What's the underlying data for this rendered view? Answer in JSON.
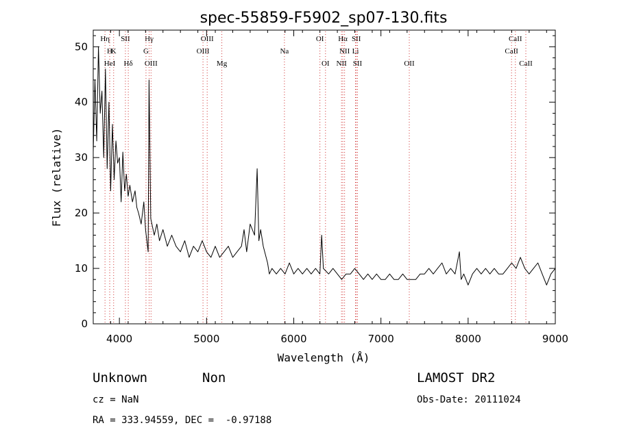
{
  "chart_data": {
    "type": "line",
    "title": "spec-55859-F5902_sp07-130.fits",
    "xlabel": "Wavelength (Å)",
    "ylabel": "Flux (relative)",
    "xlim": [
      3700,
      9000
    ],
    "ylim": [
      0,
      53
    ],
    "xticks": [
      4000,
      5000,
      6000,
      7000,
      8000,
      9000
    ],
    "yticks": [
      0,
      10,
      20,
      30,
      40,
      50
    ],
    "grid": false,
    "series": [
      {
        "color": "#000000",
        "x": [
          3700,
          3720,
          3740,
          3760,
          3780,
          3800,
          3820,
          3840,
          3860,
          3880,
          3900,
          3920,
          3940,
          3960,
          3980,
          4000,
          4020,
          4040,
          4060,
          4080,
          4100,
          4120,
          4150,
          4180,
          4200,
          4220,
          4250,
          4280,
          4300,
          4330,
          4340,
          4360,
          4400,
          4430,
          4460,
          4500,
          4550,
          4600,
          4650,
          4700,
          4750,
          4800,
          4850,
          4900,
          4950,
          5000,
          5050,
          5100,
          5150,
          5200,
          5250,
          5300,
          5350,
          5400,
          5430,
          5460,
          5500,
          5550,
          5580,
          5600,
          5620,
          5650,
          5700,
          5720,
          5750,
          5800,
          5850,
          5900,
          5950,
          6000,
          6050,
          6100,
          6150,
          6200,
          6250,
          6300,
          6320,
          6340,
          6400,
          6450,
          6500,
          6550,
          6600,
          6650,
          6700,
          6750,
          6800,
          6850,
          6900,
          6950,
          7000,
          7050,
          7100,
          7150,
          7200,
          7250,
          7300,
          7350,
          7400,
          7450,
          7500,
          7550,
          7600,
          7650,
          7700,
          7750,
          7800,
          7850,
          7900,
          7920,
          7950,
          8000,
          8050,
          8100,
          8150,
          8200,
          8250,
          8300,
          8350,
          8400,
          8450,
          8500,
          8550,
          8600,
          8650,
          8700,
          8750,
          8800,
          8850,
          8900,
          8950,
          9000
        ],
        "y": [
          31,
          44,
          33,
          50,
          38,
          42,
          30,
          46,
          28,
          40,
          24,
          36,
          26,
          33,
          29,
          30,
          22,
          31,
          24,
          27,
          23,
          25,
          22,
          24,
          21,
          20,
          18,
          22,
          17,
          13,
          44,
          19,
          16,
          18,
          15,
          17,
          14,
          16,
          14,
          13,
          15,
          12,
          14,
          13,
          15,
          13,
          12,
          14,
          12,
          13,
          14,
          12,
          13,
          14,
          17,
          13,
          18,
          16,
          28,
          15,
          17,
          14,
          11,
          9,
          10,
          9,
          10,
          9,
          11,
          9,
          10,
          9,
          10,
          9,
          10,
          9,
          16,
          10,
          9,
          10,
          9,
          8,
          9,
          9,
          10,
          9,
          8,
          9,
          8,
          9,
          8,
          8,
          9,
          8,
          8,
          9,
          8,
          8,
          8,
          9,
          9,
          10,
          9,
          10,
          11,
          9,
          10,
          9,
          13,
          8,
          9,
          7,
          9,
          10,
          9,
          10,
          9,
          10,
          9,
          9,
          10,
          11,
          10,
          12,
          10,
          9,
          10,
          11,
          9,
          7,
          9,
          10
        ]
      }
    ],
    "lines": [
      {
        "label": "Hη",
        "x": 3835,
        "row": 0
      },
      {
        "label": "K",
        "x": 3934,
        "row": 1
      },
      {
        "label": "H",
        "x": 3889,
        "row": 1
      },
      {
        "label": "HeI",
        "x": 3889,
        "row": 2
      },
      {
        "label": "SII",
        "x": 4069,
        "row": 0
      },
      {
        "label": "Hδ",
        "x": 4102,
        "row": 2
      },
      {
        "label": "Hγ",
        "x": 4341,
        "row": 0
      },
      {
        "label": "G",
        "x": 4305,
        "row": 1
      },
      {
        "label": "OIII",
        "x": 4363,
        "row": 2
      },
      {
        "label": "OIII",
        "x": 5007,
        "row": 0
      },
      {
        "label": "OIII",
        "x": 4959,
        "row": 1
      },
      {
        "label": "Mg",
        "x": 5175,
        "row": 2
      },
      {
        "label": "Na",
        "x": 5893,
        "row": 1
      },
      {
        "label": "OI",
        "x": 6300,
        "row": 0
      },
      {
        "label": "OI",
        "x": 6364,
        "row": 2
      },
      {
        "label": "Hα",
        "x": 6563,
        "row": 0
      },
      {
        "label": "NII",
        "x": 6583,
        "row": 1
      },
      {
        "label": "NII",
        "x": 6548,
        "row": 2
      },
      {
        "label": "SII",
        "x": 6717,
        "row": 0
      },
      {
        "label": "Li",
        "x": 6708,
        "row": 1
      },
      {
        "label": "SII",
        "x": 6731,
        "row": 2
      },
      {
        "label": "OII",
        "x": 7325,
        "row": 2
      },
      {
        "label": "CaII",
        "x": 8542,
        "row": 0
      },
      {
        "label": "CaII",
        "x": 8498,
        "row": 1
      },
      {
        "label": "CaII",
        "x": 8662,
        "row": 2
      }
    ]
  },
  "info": {
    "class": "Unknown",
    "subclass": "Non",
    "survey": "LAMOST DR2",
    "cz": "cz = NaN",
    "obsdate": "Obs-Date: 20111024",
    "coords": "RA = 333.94559, DEC =  -0.97188"
  }
}
